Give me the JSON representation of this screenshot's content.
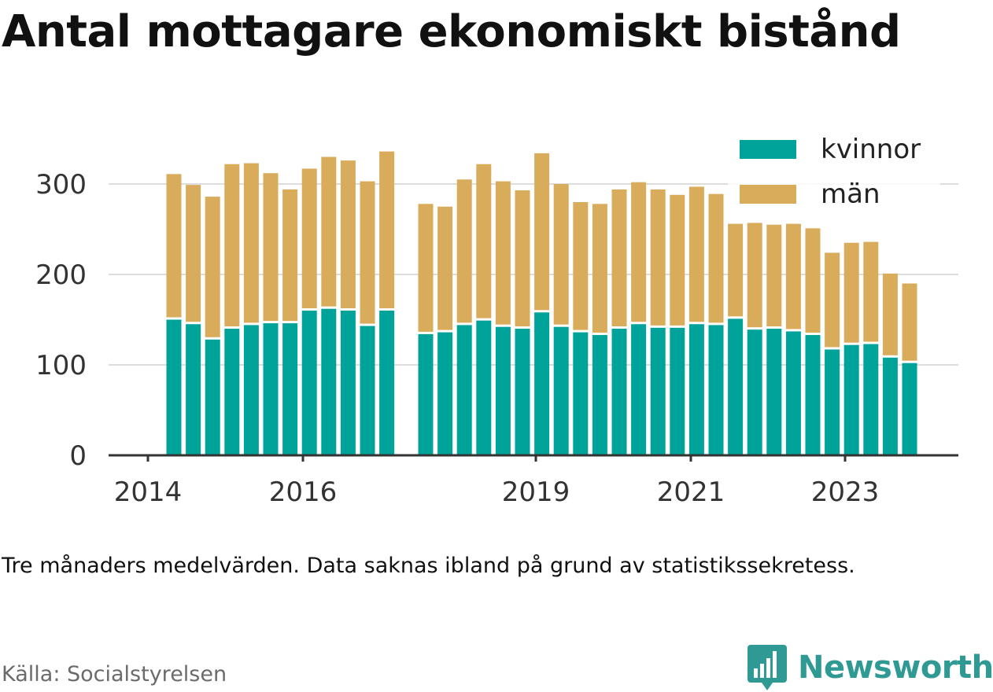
{
  "title": "Antal mottagare ekonomiskt bistånd",
  "note": "Tre månaders medelvärden. Data saknas ibland på grund av statistikssekretess.",
  "source": "Källa: Socialstyrelsen",
  "brand": "Newsworthy",
  "colors": {
    "kvinnor": "#00a39a",
    "man": "#d9ac5c",
    "grid": "#dddddd",
    "axis": "#333333",
    "brand": "#2f9a94"
  },
  "chart_data": {
    "type": "bar",
    "stacked": true,
    "x_ticks": [
      "2014",
      "2016",
      "2019",
      "2021",
      "2023"
    ],
    "y_ticks": [
      0,
      100,
      200,
      300
    ],
    "ylim": [
      0,
      345
    ],
    "grid": "horizontal",
    "legend": "top-right",
    "series": [
      {
        "name": "kvinnor",
        "color": "#00a39a",
        "values": [
          150,
          145,
          128,
          140,
          144,
          146,
          146,
          160,
          162,
          160,
          143,
          160,
          134,
          136,
          144,
          149,
          142,
          140,
          158,
          142,
          136,
          133,
          140,
          145,
          141,
          141,
          145,
          144,
          151,
          139,
          140,
          137,
          133,
          117,
          122,
          123,
          108,
          102
        ]
      },
      {
        "name": "män",
        "color": "#d9ac5c",
        "values": [
          161,
          154,
          158,
          182,
          179,
          166,
          148,
          157,
          168,
          166,
          160,
          176,
          144,
          139,
          161,
          173,
          161,
          153,
          176,
          158,
          144,
          145,
          154,
          157,
          153,
          147,
          152,
          145,
          105,
          118,
          115,
          119,
          118,
          107,
          113,
          113,
          93,
          88
        ]
      }
    ]
  }
}
